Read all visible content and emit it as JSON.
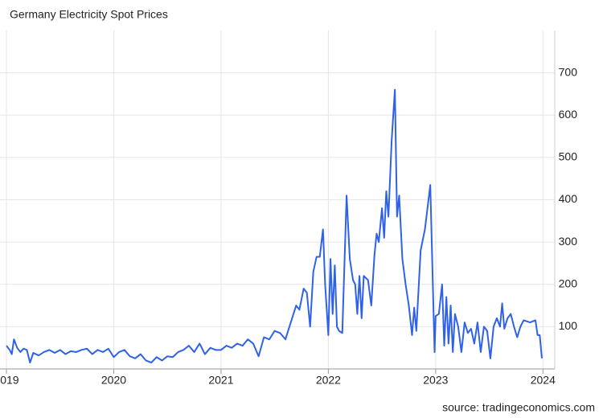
{
  "chart_data": {
    "type": "line",
    "title": "Germany Electricity Spot Prices",
    "source": "source: tradingeconomics.com",
    "x": [
      2019.0,
      2019.03,
      2019.05,
      2019.07,
      2019.1,
      2019.13,
      2019.16,
      2019.19,
      2019.22,
      2019.25,
      2019.3,
      2019.35,
      2019.4,
      2019.45,
      2019.5,
      2019.55,
      2019.6,
      2019.65,
      2019.7,
      2019.75,
      2019.8,
      2019.85,
      2019.9,
      2019.95,
      2020.0,
      2020.05,
      2020.1,
      2020.15,
      2020.2,
      2020.25,
      2020.3,
      2020.35,
      2020.4,
      2020.45,
      2020.5,
      2020.55,
      2020.6,
      2020.65,
      2020.7,
      2020.75,
      2020.8,
      2020.85,
      2020.9,
      2020.95,
      2021.0,
      2021.05,
      2021.1,
      2021.15,
      2021.2,
      2021.25,
      2021.3,
      2021.35,
      2021.4,
      2021.45,
      2021.5,
      2021.55,
      2021.6,
      2021.65,
      2021.7,
      2021.73,
      2021.77,
      2021.8,
      2021.83,
      2021.86,
      2021.89,
      2021.92,
      2021.95,
      2021.97,
      2022.0,
      2022.02,
      2022.04,
      2022.06,
      2022.08,
      2022.1,
      2022.13,
      2022.17,
      2022.2,
      2022.23,
      2022.25,
      2022.27,
      2022.29,
      2022.31,
      2022.33,
      2022.37,
      2022.4,
      2022.43,
      2022.45,
      2022.47,
      2022.5,
      2022.52,
      2022.54,
      2022.56,
      2022.59,
      2022.62,
      2022.64,
      2022.66,
      2022.69,
      2022.72,
      2022.75,
      2022.78,
      2022.8,
      2022.82,
      2022.86,
      2022.9,
      2022.95,
      2022.99,
      2023.0,
      2023.03,
      2023.06,
      2023.08,
      2023.1,
      2023.12,
      2023.14,
      2023.16,
      2023.18,
      2023.21,
      2023.24,
      2023.27,
      2023.3,
      2023.33,
      2023.36,
      2023.39,
      2023.42,
      2023.45,
      2023.48,
      2023.51,
      2023.54,
      2023.57,
      2023.6,
      2023.62,
      2023.64,
      2023.67,
      2023.7,
      2023.73,
      2023.76,
      2023.79,
      2023.82,
      2023.88,
      2023.93,
      2023.95,
      2023.97,
      2023.99
    ],
    "values": [
      55,
      45,
      35,
      70,
      50,
      40,
      48,
      45,
      15,
      38,
      32,
      40,
      45,
      38,
      45,
      35,
      42,
      40,
      45,
      48,
      35,
      45,
      40,
      48,
      28,
      40,
      45,
      30,
      25,
      35,
      20,
      15,
      28,
      20,
      30,
      28,
      40,
      45,
      55,
      40,
      60,
      35,
      50,
      45,
      45,
      55,
      50,
      60,
      55,
      70,
      60,
      30,
      75,
      70,
      90,
      85,
      70,
      110,
      150,
      140,
      190,
      180,
      100,
      230,
      265,
      265,
      330,
      200,
      80,
      260,
      130,
      245,
      100,
      90,
      85,
      410,
      260,
      210,
      200,
      130,
      220,
      120,
      220,
      210,
      150,
      270,
      320,
      300,
      380,
      310,
      420,
      360,
      540,
      660,
      360,
      410,
      260,
      200,
      150,
      80,
      145,
      90,
      280,
      330,
      435,
      40,
      125,
      130,
      200,
      55,
      170,
      60,
      150,
      40,
      130,
      100,
      40,
      110,
      85,
      95,
      60,
      110,
      40,
      100,
      90,
      25,
      100,
      120,
      100,
      155,
      95,
      120,
      130,
      100,
      75,
      100,
      115,
      110,
      115,
      80,
      80,
      25
    ],
    "color": "#2f62e8",
    "xlim": [
      2018.94,
      2024.11
    ],
    "xticks": [
      2019,
      2020,
      2021,
      2022,
      2023,
      2024
    ],
    "ylim": [
      0,
      800
    ],
    "yticks": [
      100,
      200,
      300,
      400,
      500,
      600,
      700
    ],
    "grid": true
  }
}
